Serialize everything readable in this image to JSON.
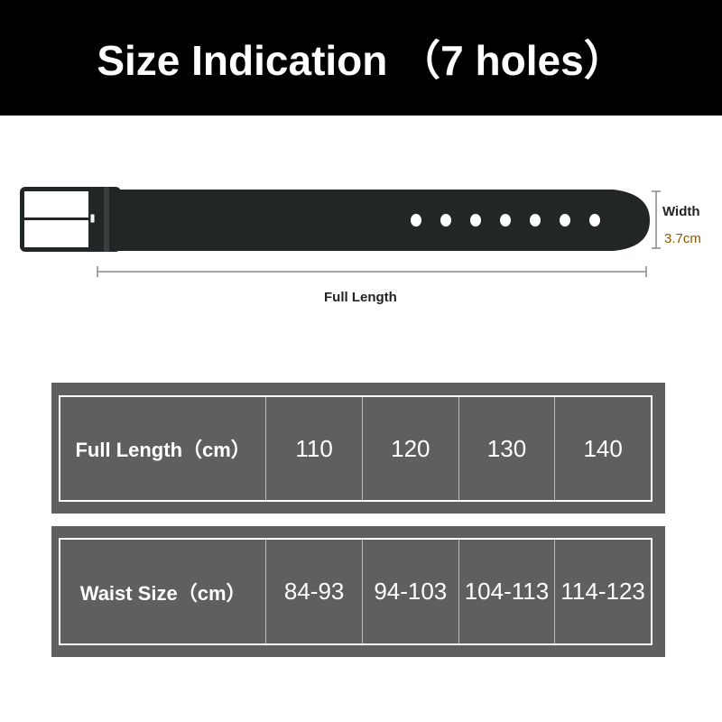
{
  "title": "Size Indication （7 holes）",
  "belt": {
    "holes": 7,
    "width_label": "Width",
    "width_value": "3.7cm",
    "length_label": "Full Length",
    "width_value_color": "#8a5a00"
  },
  "table": {
    "rows": [
      {
        "header": "Full Length（cm）",
        "values": [
          "110",
          "120",
          "130",
          "140"
        ]
      },
      {
        "header": "Waist Size（cm）",
        "values": [
          "84-93",
          "94-103",
          "104-113",
          "114-123"
        ]
      }
    ]
  }
}
